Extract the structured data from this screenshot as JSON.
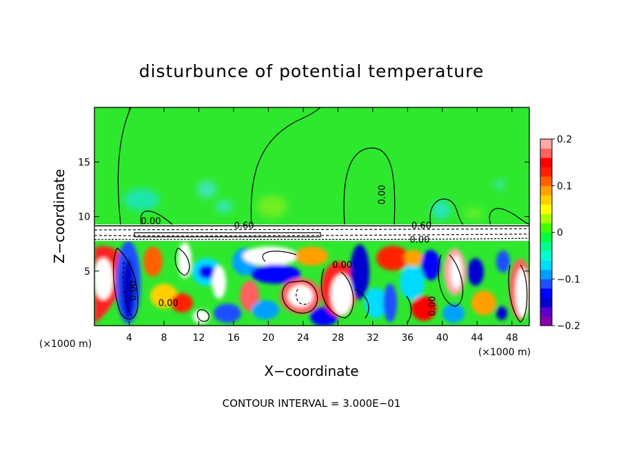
{
  "chart_data": {
    "type": "heatmap",
    "title": "disturbunce of potential temperature",
    "xlabel": "X−coordinate",
    "ylabel": "Z−coordinate",
    "x_unit": "(×1000 m)",
    "y_unit": "(×1000 m)",
    "xlim": [
      0,
      50
    ],
    "ylim": [
      0,
      20
    ],
    "x_ticks": [
      4,
      8,
      12,
      16,
      20,
      24,
      28,
      32,
      36,
      40,
      44,
      48
    ],
    "x_tick_labels": [
      "4",
      "8",
      "12",
      "16",
      "20",
      "24",
      "28",
      "32",
      "36",
      "40",
      "44",
      "48"
    ],
    "y_ticks": [
      5,
      10,
      15
    ],
    "y_tick_labels": [
      "5",
      "10",
      "15"
    ],
    "colorbar": {
      "range": [
        -0.2,
        0.2
      ],
      "ticks": [
        0.2,
        0.1,
        0,
        -0.1,
        -0.2
      ],
      "tick_labels": [
        "0.2",
        "0.1",
        "0",
        "−0.1",
        "−0.2"
      ],
      "colors": [
        "#8800aa",
        "#5a00c8",
        "#0000d0",
        "#0000ff",
        "#1e50ff",
        "#00a0ff",
        "#00dcff",
        "#00ffd0",
        "#00ff90",
        "#00ff40",
        "#40ff00",
        "#aaff00",
        "#ffff00",
        "#ffd000",
        "#ffa000",
        "#ff6000",
        "#ff2000",
        "#ff0000",
        "#ff6060",
        "#ffa8a8"
      ]
    },
    "contour_labels": [
      {
        "text": "0.00",
        "x": 6.5,
        "z": 9.3
      },
      {
        "text": "0.60",
        "x": 17.2,
        "z": 8.9
      },
      {
        "text": "0.00",
        "x": 28.5,
        "z": 5.3
      },
      {
        "text": "0.00",
        "x": 33.4,
        "z": 12.0
      },
      {
        "text": "0.00",
        "x": 8.5,
        "z": 1.8
      },
      {
        "text": "0.00",
        "x": 4.8,
        "z": 3.2
      },
      {
        "text": "0.60",
        "x": 37.6,
        "z": 8.9
      },
      {
        "text": "0.00",
        "x": 37.4,
        "z": 7.6
      },
      {
        "text": "0.00",
        "x": 39.2,
        "z": 1.8
      }
    ],
    "footer": "CONTOUR INTERVAL = 3.000E−01"
  }
}
